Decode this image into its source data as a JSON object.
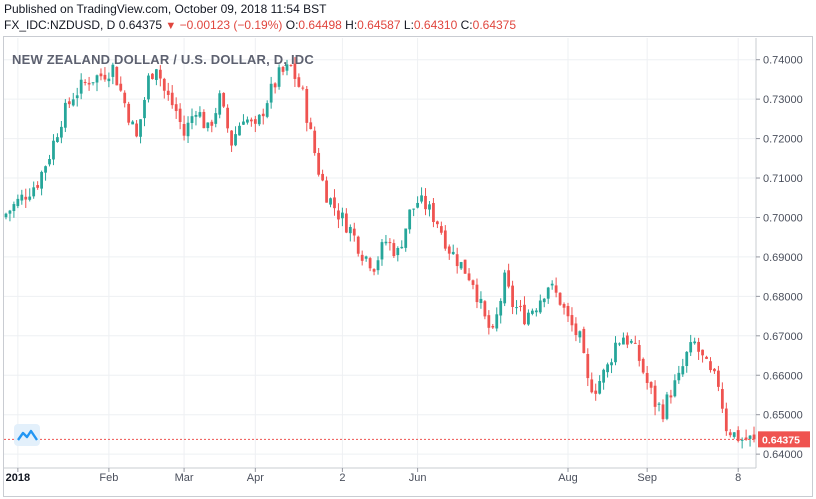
{
  "header": {
    "published": "Published on TradingView.com, October 09, 2018 11:54 BST",
    "symbol": "FX_IDC:NZDUSD, D",
    "last": "0.64375",
    "change_arrow": "▼",
    "change": "−0.00123 (−0.19%)",
    "o_label": "O:",
    "o_value": "0.64498",
    "h_label": "H:",
    "h_value": "0.64587",
    "l_label": "L:",
    "l_value": "0.64310",
    "c_label": "C:",
    "c_value": "0.64375"
  },
  "colors": {
    "up": "#26a69a",
    "down": "#ef5350",
    "price_tag": "#ef5350",
    "grid": "#eef0f3",
    "axis_text": "#4a4f5c"
  },
  "icons": {
    "logo": "tradingview-logo-icon"
  },
  "chart_data": {
    "type": "candlestick",
    "title": "NEW ZEALAND DOLLAR / U.S. DOLLAR, D, IDC",
    "ylim": [
      0.6375,
      0.7455
    ],
    "y_ticks": [
      "0.74000",
      "0.73000",
      "0.72000",
      "0.71000",
      "0.70000",
      "0.69000",
      "0.68000",
      "0.67000",
      "0.66000",
      "0.65000",
      "0.64000"
    ],
    "y_tick_values": [
      0.74,
      0.73,
      0.72,
      0.71,
      0.7,
      0.69,
      0.68,
      0.67,
      0.66,
      0.65,
      0.64
    ],
    "x_ticks": [
      {
        "label": "2018",
        "bar": 3,
        "bold": true
      },
      {
        "label": "Feb",
        "bar": 26
      },
      {
        "label": "Mar",
        "bar": 45
      },
      {
        "label": "Apr",
        "bar": 63
      },
      {
        "label": "2",
        "bar": 85
      },
      {
        "label": "Jun",
        "bar": 104
      },
      {
        "label": "Aug",
        "bar": 142
      },
      {
        "label": "Sep",
        "bar": 162
      },
      {
        "label": "8",
        "bar": 185
      }
    ],
    "current_price": 0.64375,
    "current_price_label": "0.64375",
    "bars": 190,
    "key_closes": [
      [
        0,
        0.701
      ],
      [
        4,
        0.705
      ],
      [
        8,
        0.709
      ],
      [
        11,
        0.716
      ],
      [
        14,
        0.725
      ],
      [
        17,
        0.731
      ],
      [
        21,
        0.735
      ],
      [
        24,
        0.736
      ],
      [
        27,
        0.738
      ],
      [
        30,
        0.729
      ],
      [
        33,
        0.72
      ],
      [
        36,
        0.735
      ],
      [
        38,
        0.739
      ],
      [
        40,
        0.732
      ],
      [
        43,
        0.727
      ],
      [
        45,
        0.721
      ],
      [
        48,
        0.728
      ],
      [
        51,
        0.722
      ],
      [
        54,
        0.73
      ],
      [
        57,
        0.719
      ],
      [
        60,
        0.726
      ],
      [
        63,
        0.722
      ],
      [
        66,
        0.73
      ],
      [
        69,
        0.736
      ],
      [
        72,
        0.738
      ],
      [
        75,
        0.731
      ],
      [
        77,
        0.721
      ],
      [
        79,
        0.712
      ],
      [
        81,
        0.706
      ],
      [
        84,
        0.701
      ],
      [
        87,
        0.697
      ],
      [
        90,
        0.691
      ],
      [
        93,
        0.688
      ],
      [
        96,
        0.694
      ],
      [
        99,
        0.691
      ],
      [
        102,
        0.701
      ],
      [
        104,
        0.704
      ],
      [
        106,
        0.703
      ],
      [
        109,
        0.699
      ],
      [
        112,
        0.692
      ],
      [
        115,
        0.688
      ],
      [
        118,
        0.684
      ],
      [
        121,
        0.674
      ],
      [
        123,
        0.67
      ],
      [
        126,
        0.684
      ],
      [
        128,
        0.678
      ],
      [
        131,
        0.675
      ],
      [
        134,
        0.678
      ],
      [
        137,
        0.683
      ],
      [
        140,
        0.679
      ],
      [
        142,
        0.674
      ],
      [
        145,
        0.669
      ],
      [
        147,
        0.658
      ],
      [
        149,
        0.657
      ],
      [
        152,
        0.662
      ],
      [
        154,
        0.668
      ],
      [
        156,
        0.67
      ],
      [
        158,
        0.668
      ],
      [
        160,
        0.664
      ],
      [
        162,
        0.658
      ],
      [
        164,
        0.653
      ],
      [
        166,
        0.651
      ],
      [
        168,
        0.656
      ],
      [
        170,
        0.659
      ],
      [
        172,
        0.665
      ],
      [
        174,
        0.668
      ],
      [
        176,
        0.664
      ],
      [
        178,
        0.66
      ],
      [
        180,
        0.658
      ],
      [
        182,
        0.647
      ],
      [
        184,
        0.645
      ],
      [
        186,
        0.64375
      ]
    ]
  }
}
